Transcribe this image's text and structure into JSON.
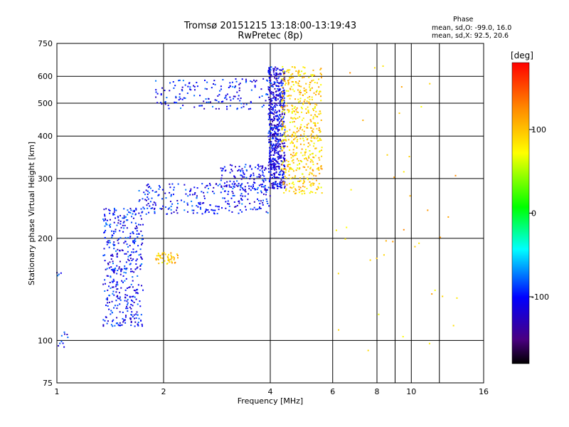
{
  "chart_data": {
    "type": "scatter",
    "title": "Tromsø 20151215 13:18:00-13:19:43",
    "subtitle": "RwPretec (8p)",
    "phase_stats": {
      "heading": "Phase",
      "line1": "mean, sd,O: -99.0, 16.0",
      "line2": "mean, sd,X:  92.5, 20.6"
    },
    "xlabel": "Frequency [MHz]",
    "ylabel": "Stationary phase Virtual Height [km]",
    "x_scale": "log",
    "y_scale": "log",
    "xlim": [
      1,
      16
    ],
    "ylim": [
      75,
      750
    ],
    "x_ticks": [
      1,
      2,
      4,
      6,
      8,
      10,
      16
    ],
    "x_tick_labels": [
      "1",
      "2",
      "4",
      "6",
      "8",
      "10",
      "16"
    ],
    "y_ticks": [
      75,
      100,
      200,
      300,
      400,
      500,
      600,
      750
    ],
    "y_tick_labels": [
      "75",
      "100",
      "200",
      "300",
      "400",
      "500",
      "600",
      "750"
    ],
    "grid": true,
    "colorbar": {
      "label": "[deg]",
      "range": [
        -180,
        180
      ],
      "ticks": [
        100,
        0,
        -100
      ],
      "tick_labels": [
        "100",
        "0",
        "-100"
      ]
    },
    "clusters": [
      {
        "name": "low-frequency scatter",
        "n": 420,
        "x_range": [
          1.35,
          1.75
        ],
        "y_range": [
          110,
          245
        ],
        "phase": -100
      },
      {
        "name": "low echo",
        "n": 10,
        "x_range": [
          1.0,
          1.08
        ],
        "y_range": [
          95,
          106
        ],
        "phase": -100
      },
      {
        "name": "low point",
        "n": 4,
        "x_range": [
          1.0,
          1.03
        ],
        "y_range": [
          155,
          160
        ],
        "phase": -100
      },
      {
        "name": "sporadic yellow patch",
        "n": 45,
        "x_range": [
          1.9,
          2.2
        ],
        "y_range": [
          168,
          182
        ],
        "phase": 100
      },
      {
        "name": "F2 upper band",
        "n": 160,
        "x_range": [
          1.9,
          3.95
        ],
        "y_range": [
          480,
          590
        ],
        "phase": -100
      },
      {
        "name": "F2 lower bands",
        "n": 260,
        "x_range": [
          1.7,
          4.0
        ],
        "y_range": [
          235,
          290
        ],
        "phase": -100
      },
      {
        "name": "F2 inner trace",
        "n": 120,
        "x_range": [
          2.9,
          3.9
        ],
        "y_range": [
          275,
          330
        ],
        "phase": -100
      },
      {
        "name": "O-mode spread",
        "n": 620,
        "x_range": [
          3.95,
          4.4
        ],
        "y_range": [
          280,
          640
        ],
        "phase": -110
      },
      {
        "name": "X-mode spread",
        "n": 520,
        "x_range": [
          4.3,
          5.6
        ],
        "y_range": [
          270,
          640
        ],
        "phase": 95
      },
      {
        "name": "scattered high-frequency points",
        "n": 40,
        "x_range": [
          6.0,
          14.0
        ],
        "y_range": [
          85,
          660
        ],
        "phase": 100
      }
    ]
  }
}
